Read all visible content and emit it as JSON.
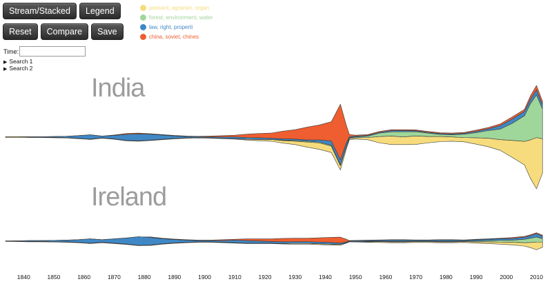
{
  "buttons": {
    "stream_stacked": "Stream/Stacked",
    "legend": "Legend",
    "reset": "Reset",
    "compare": "Compare",
    "save": "Save"
  },
  "time": {
    "label": "Time:",
    "value": ""
  },
  "searches": [
    "Search 1",
    "Search 2"
  ],
  "legend_items": [
    {
      "label": "peasant, agrarian, organ",
      "color": "#f6dc7c"
    },
    {
      "label": "forest, environment, water",
      "color": "#9fd69a"
    },
    {
      "label": "law, right, properti",
      "color": "#3f88c5"
    },
    {
      "label": "china, soviet, chines",
      "color": "#ee5e30"
    }
  ],
  "chart_data": {
    "type": "area",
    "layout": "streamgraph",
    "xlim": [
      1834,
      2014
    ],
    "x_ticks": [
      1840,
      1850,
      1860,
      1870,
      1880,
      1890,
      1900,
      1910,
      1920,
      1930,
      1940,
      1950,
      1960,
      1970,
      1980,
      1990,
      2000,
      2010
    ],
    "panels": [
      {
        "label": "India",
        "x": [
          1834,
          1838,
          1842,
          1846,
          1850,
          1854,
          1858,
          1862,
          1866,
          1870,
          1874,
          1878,
          1882,
          1886,
          1890,
          1894,
          1898,
          1902,
          1906,
          1910,
          1914,
          1918,
          1922,
          1926,
          1930,
          1934,
          1938,
          1942,
          1945,
          1947,
          1948,
          1950,
          1954,
          1958,
          1962,
          1966,
          1970,
          1974,
          1978,
          1982,
          1986,
          1990,
          1994,
          1998,
          2002,
          2006,
          2008,
          2010,
          2012
        ],
        "series": [
          {
            "name": "peasant, agrarian, organ",
            "values": [
              2,
              2,
              1,
              1,
              1,
              1,
              1,
              1,
              1,
              1,
              1,
              1,
              1,
              1,
              1,
              1,
              1,
              1,
              1,
              1,
              2,
              3,
              4,
              6,
              8,
              12,
              15,
              15,
              10,
              5,
              3,
              3,
              5,
              15,
              20,
              18,
              20,
              15,
              12,
              10,
              10,
              15,
              20,
              25,
              40,
              55,
              90,
              120,
              80
            ]
          },
          {
            "name": "forest, environment, water",
            "values": [
              0,
              0,
              0,
              0,
              0,
              0,
              0,
              0,
              0,
              0,
              0,
              0,
              0,
              0,
              0,
              0,
              0,
              0,
              0,
              0,
              0,
              0,
              0,
              1,
              2,
              2,
              2,
              2,
              2,
              1,
              1,
              2,
              3,
              8,
              10,
              12,
              10,
              8,
              5,
              5,
              8,
              12,
              18,
              25,
              40,
              60,
              85,
              100,
              70
            ]
          },
          {
            "name": "law, right, properti",
            "values": [
              0,
              0,
              1,
              1,
              2,
              3,
              6,
              10,
              4,
              8,
              14,
              16,
              14,
              10,
              6,
              3,
              2,
              2,
              3,
              4,
              4,
              4,
              3,
              3,
              3,
              3,
              5,
              10,
              12,
              8,
              3,
              2,
              2,
              2,
              3,
              3,
              2,
              2,
              2,
              2,
              2,
              3,
              4,
              8,
              10,
              10,
              10,
              12,
              10
            ]
          },
          {
            "name": "china, soviet, chines",
            "values": [
              0,
              0,
              0,
              0,
              0,
              0,
              0,
              0,
              0,
              1,
              2,
              2,
              1,
              1,
              1,
              1,
              1,
              2,
              3,
              4,
              8,
              10,
              12,
              18,
              22,
              30,
              35,
              45,
              130,
              40,
              5,
              2,
              2,
              2,
              2,
              2,
              2,
              2,
              2,
              2,
              2,
              3,
              3,
              4,
              5,
              5,
              8,
              10,
              8
            ]
          }
        ]
      },
      {
        "label": "Ireland",
        "x": [
          1834,
          1838,
          1842,
          1846,
          1850,
          1854,
          1858,
          1862,
          1866,
          1870,
          1874,
          1878,
          1882,
          1886,
          1890,
          1894,
          1898,
          1902,
          1906,
          1910,
          1914,
          1918,
          1922,
          1926,
          1930,
          1934,
          1938,
          1942,
          1945,
          1947,
          1948,
          1950,
          1954,
          1958,
          1962,
          1966,
          1970,
          1974,
          1978,
          1982,
          1986,
          1990,
          1994,
          1998,
          2002,
          2006,
          2008,
          2010,
          2012
        ],
        "series": [
          {
            "name": "peasant, agrarian, organ",
            "values": [
              1,
              1,
              1,
              1,
              1,
              1,
              1,
              1,
              1,
              1,
              1,
              1,
              1,
              1,
              1,
              1,
              1,
              1,
              1,
              1,
              1,
              1,
              1,
              1,
              2,
              2,
              2,
              2,
              2,
              1,
              1,
              1,
              1,
              2,
              2,
              2,
              2,
              2,
              2,
              2,
              2,
              3,
              4,
              5,
              6,
              8,
              12,
              18,
              12
            ]
          },
          {
            "name": "forest, environment, water",
            "values": [
              0,
              0,
              0,
              0,
              0,
              0,
              0,
              0,
              0,
              0,
              0,
              0,
              0,
              0,
              0,
              0,
              0,
              0,
              0,
              0,
              0,
              0,
              0,
              0,
              0,
              0,
              0,
              0,
              0,
              0,
              0,
              0,
              1,
              1,
              1,
              1,
              1,
              1,
              1,
              1,
              1,
              2,
              3,
              4,
              5,
              8,
              10,
              12,
              8
            ]
          },
          {
            "name": "law, right, properti",
            "values": [
              0,
              1,
              2,
              2,
              3,
              4,
              6,
              10,
              6,
              10,
              14,
              20,
              18,
              12,
              8,
              5,
              3,
              3,
              4,
              6,
              6,
              5,
              4,
              4,
              4,
              4,
              4,
              4,
              3,
              2,
              1,
              2,
              2,
              2,
              3,
              3,
              2,
              2,
              3,
              3,
              2,
              3,
              3,
              4,
              4,
              5,
              6,
              8,
              6
            ]
          },
          {
            "name": "china, soviet, chines",
            "values": [
              0,
              0,
              0,
              0,
              0,
              0,
              0,
              0,
              0,
              0,
              0,
              0,
              1,
              1,
              1,
              1,
              1,
              1,
              2,
              2,
              4,
              5,
              6,
              8,
              8,
              8,
              10,
              12,
              14,
              6,
              1,
              1,
              1,
              1,
              1,
              1,
              1,
              1,
              1,
              1,
              1,
              1,
              1,
              1,
              2,
              2,
              2,
              2,
              2
            ]
          }
        ]
      }
    ]
  }
}
